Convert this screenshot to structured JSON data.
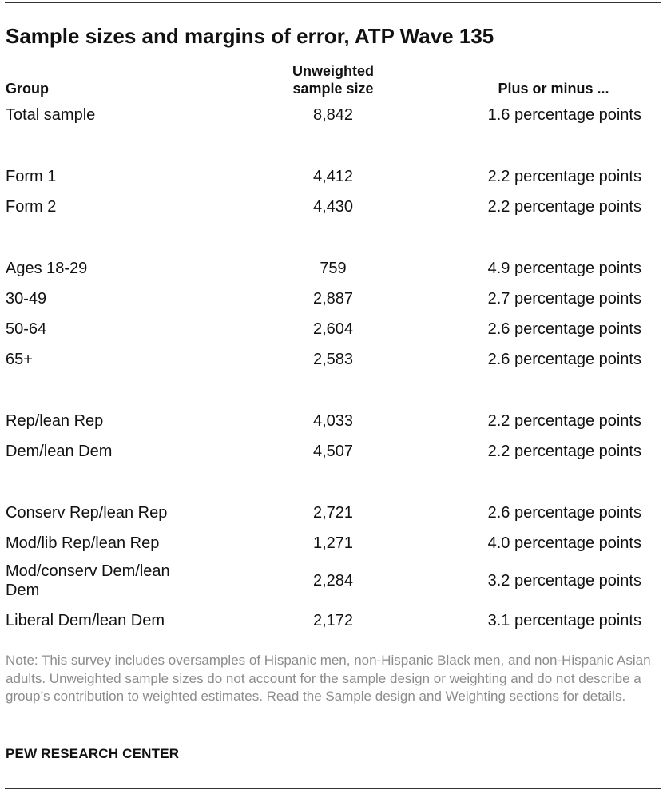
{
  "title": "Sample sizes and margins of error, ATP Wave 135",
  "header": {
    "group": "Group",
    "size_line1": "Unweighted",
    "size_line2": "sample size",
    "moe": "Plus or minus ..."
  },
  "rows": [
    {
      "group": "Total sample",
      "size": "8,842",
      "moe": "1.6 percentage points"
    },
    {
      "group": "Form 1",
      "size": "4,412",
      "moe": "2.2 percentage points"
    },
    {
      "group": "Form 2",
      "size": "4,430",
      "moe": "2.2 percentage points"
    },
    {
      "group": "Ages 18-29",
      "size": "759",
      "moe": "4.9 percentage points"
    },
    {
      "group": "30-49",
      "size": "2,887",
      "moe": "2.7 percentage points"
    },
    {
      "group": "50-64",
      "size": "2,604",
      "moe": "2.6 percentage points"
    },
    {
      "group": "65+",
      "size": "2,583",
      "moe": "2.6 percentage points"
    },
    {
      "group": "Rep/lean Rep",
      "size": "4,033",
      "moe": "2.2 percentage points"
    },
    {
      "group": "Dem/lean Dem",
      "size": "4,507",
      "moe": "2.2 percentage points"
    },
    {
      "group": "Conserv Rep/lean Rep",
      "size": "2,721",
      "moe": "2.6 percentage points"
    },
    {
      "group": "Mod/lib Rep/lean Rep",
      "size": "1,271",
      "moe": "4.0 percentage points"
    },
    {
      "group": "Mod/conserv Dem/lean Dem",
      "size": "2,284",
      "moe": "3.2 percentage points"
    },
    {
      "group": "Liberal Dem/lean Dem",
      "size": "2,172",
      "moe": "3.1 percentage points"
    }
  ],
  "note": "Note: This survey includes oversamples of Hispanic men, non-Hispanic Black men, and non-Hispanic Asian adults. Unweighted sample sizes do not account for the sample design or weighting and do not describe a group’s contribution to weighted estimates. Read the Sample design and Weighting sections for details.",
  "source": "PEW RESEARCH CENTER"
}
